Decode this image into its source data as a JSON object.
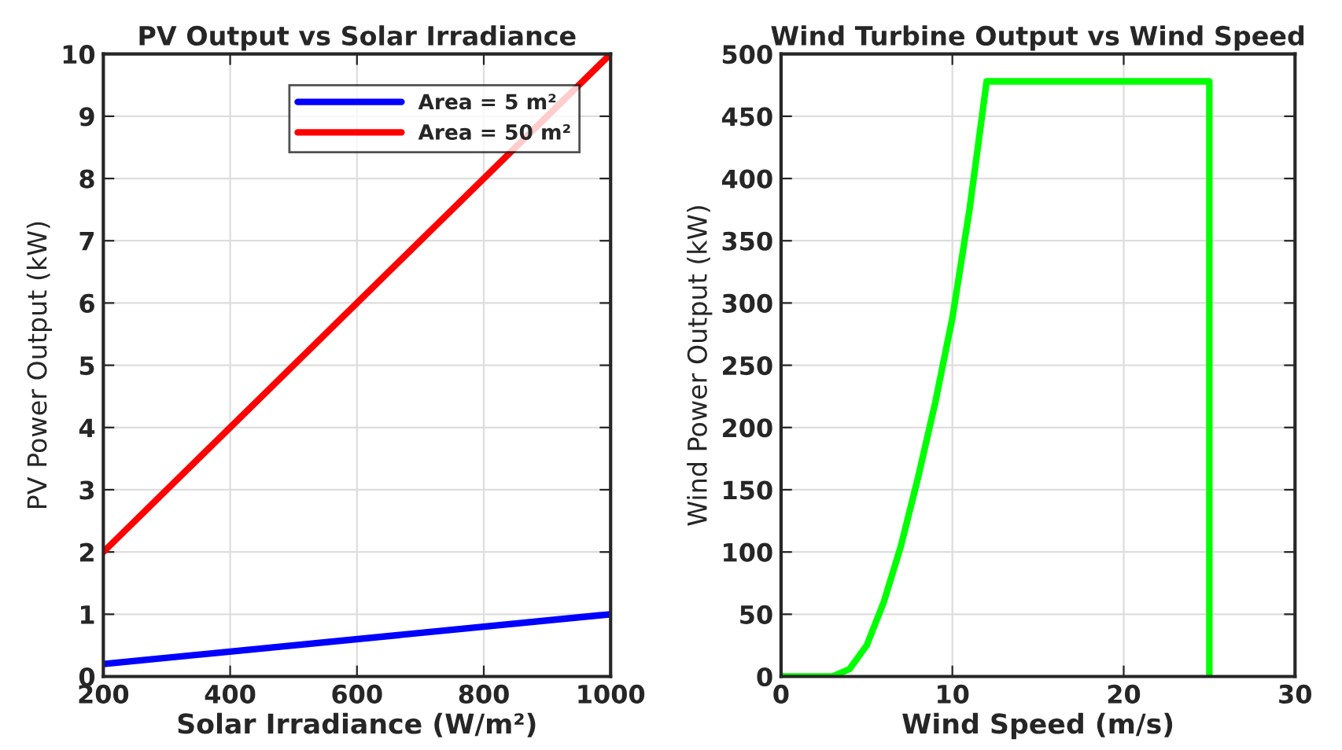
{
  "chart_data": [
    {
      "type": "line",
      "title": "PV Output vs Solar Irradiance",
      "xlabel": "Solar Irradiance (W/m²)",
      "ylabel": "PV Power Output (kW)",
      "x": [
        200,
        1000
      ],
      "series": [
        {
          "name": "Area = 5 m²",
          "color": "#0000ff",
          "values": [
            0.2,
            1.0
          ]
        },
        {
          "name": "Area = 50 m²",
          "color": "#ff0000",
          "values": [
            2,
            10
          ]
        }
      ],
      "xlim": [
        200,
        1000
      ],
      "xticks": [
        200,
        400,
        600,
        800,
        1000
      ],
      "ylim": [
        0,
        10
      ],
      "yticks": [
        0,
        1,
        2,
        3,
        4,
        5,
        6,
        7,
        8,
        9,
        10
      ],
      "grid": true,
      "legend": "top right",
      "line_style": "solid"
    },
    {
      "type": "line",
      "title": "Wind Turbine Output vs Wind Speed",
      "xlabel": "Wind Speed (m/s)",
      "ylabel": "Wind Power Output (kW)",
      "x": [
        0,
        3,
        4,
        5,
        6,
        7,
        8,
        9,
        10,
        11,
        12,
        25,
        25
      ],
      "series": [
        {
          "color": "#00ff00",
          "values": [
            0,
            0,
            6,
            25,
            60,
            105,
            160,
            220,
            288,
            375,
            478,
            478,
            0
          ]
        }
      ],
      "xlim": [
        0,
        30
      ],
      "xticks": [
        0,
        10,
        20,
        30
      ],
      "ylim": [
        0,
        500
      ],
      "yticks": [
        0,
        50,
        100,
        150,
        200,
        250,
        300,
        350,
        400,
        450,
        500
      ],
      "grid": true,
      "line_style": "solid"
    }
  ]
}
